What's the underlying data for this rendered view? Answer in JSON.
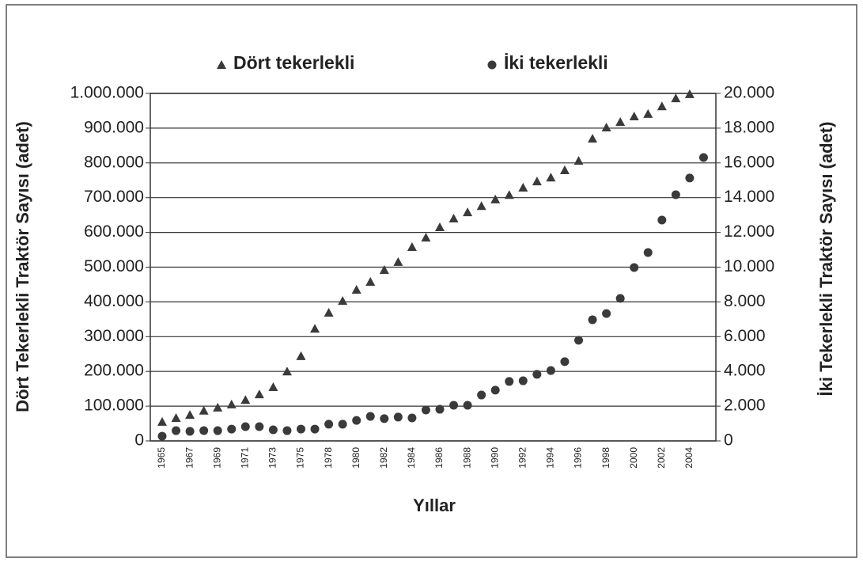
{
  "chart_data": {
    "type": "scatter",
    "legend": "top",
    "grid": true,
    "x_label": "Yıllar",
    "y_label": "Dört Tekerlekli Traktör Sayısı  (adet)",
    "y2_label": "İki Tekerlekli Traktör Sayısı (adet)",
    "categories": [
      "1965",
      null,
      "1967",
      null,
      "1969",
      null,
      "1971",
      null,
      "1973",
      null,
      "1975",
      null,
      "1978",
      null,
      "1980",
      null,
      "1982",
      null,
      "1984",
      null,
      "1986",
      null,
      "1988",
      null,
      "1990",
      null,
      "1992",
      null,
      "1994",
      null,
      "1996",
      null,
      "1998",
      null,
      "2000",
      null,
      "2002",
      null,
      "2004",
      null
    ],
    "ylim": [
      0,
      1000000
    ],
    "yticks": [
      0,
      {
        "value": 100000,
        "label": "100.000"
      },
      {
        "value": 200000,
        "label": "200.000"
      },
      {
        "value": 300000,
        "label": "300.000"
      },
      {
        "value": 400000,
        "label": "400.000"
      },
      {
        "value": 500000,
        "label": "500.000"
      },
      {
        "value": 600000,
        "label": "600.000"
      },
      {
        "value": 700000,
        "label": "700.000"
      },
      {
        "value": 800000,
        "label": "800.000"
      },
      {
        "value": 900000,
        "label": "900.000"
      },
      {
        "value": 1000000,
        "label": "1.000.000"
      }
    ],
    "y2lim": [
      0,
      20000
    ],
    "y2ticks": [
      0,
      {
        "value": 2000,
        "label": "2.000"
      },
      {
        "value": 4000,
        "label": "4.000"
      },
      {
        "value": 6000,
        "label": "6.000"
      },
      {
        "value": 8000,
        "label": "8.000"
      },
      {
        "value": 10000,
        "label": "10.000"
      },
      {
        "value": 12000,
        "label": "12.000"
      },
      {
        "value": 14000,
        "label": "14.000"
      },
      {
        "value": 16000,
        "label": "16.000"
      },
      {
        "value": 18000,
        "label": "18.000"
      },
      {
        "value": 20000,
        "label": "20.000"
      }
    ],
    "series": [
      {
        "name": "Dört tekerlekli",
        "marker": "triangle",
        "color": "#3a3a3a",
        "values": [
          55000,
          66000,
          75000,
          87000,
          96000,
          105000,
          118000,
          134000,
          155000,
          200000,
          244000,
          323000,
          369000,
          403000,
          435000,
          458000,
          492000,
          515000,
          558000,
          585000,
          615000,
          640000,
          658000,
          676000,
          695000,
          708000,
          729000,
          747000,
          758000,
          779000,
          806000,
          870000,
          902000,
          918000,
          934000,
          941000,
          963000,
          986000,
          998000,
          null
        ]
      },
      {
        "name": "İki tekerlekli",
        "marker": "circle",
        "color": "#3a3a3a",
        "axis": "y2",
        "values": [
          270,
          590,
          550,
          590,
          590,
          680,
          820,
          820,
          640,
          590,
          680,
          680,
          960,
          960,
          1180,
          1410,
          1280,
          1370,
          1320,
          1780,
          1820,
          2050,
          2050,
          2640,
          2920,
          3420,
          3460,
          3830,
          4050,
          4560,
          5790,
          6970,
          7330,
          8200,
          9980,
          10840,
          12710,
          14170,
          15130,
          16310
        ]
      }
    ]
  }
}
